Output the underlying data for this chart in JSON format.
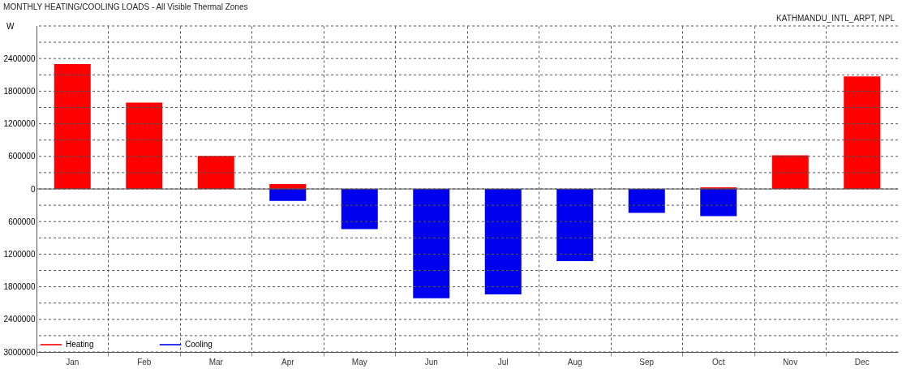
{
  "chart_data": {
    "type": "bar",
    "title": "MONTHLY HEATING/COOLING LOADS - All Visible Thermal Zones",
    "subtitle": "KATHMANDU_INTL_ARPT, NPL",
    "ylabel": "W",
    "categories": [
      "Jan",
      "Feb",
      "Mar",
      "Apr",
      "May",
      "Jun",
      "Jul",
      "Aug",
      "Sep",
      "Oct",
      "Nov",
      "Dec"
    ],
    "series": [
      {
        "name": "Heating",
        "color": "#ff0000",
        "values": [
          2300000,
          1590000,
          610000,
          90000,
          0,
          0,
          0,
          0,
          0,
          30000,
          620000,
          2070000
        ]
      },
      {
        "name": "Cooling",
        "color": "#0000ee",
        "values": [
          0,
          0,
          0,
          -220000,
          -740000,
          -2010000,
          -1940000,
          -1330000,
          -440000,
          -500000,
          0,
          0
        ]
      }
    ],
    "ylim": [
      -3000000,
      3000000
    ],
    "yticks": [
      {
        "value": -3000000,
        "label": "3000000"
      },
      {
        "value": -2700000,
        "label": null
      },
      {
        "value": -2400000,
        "label": "2400000"
      },
      {
        "value": -2100000,
        "label": null
      },
      {
        "value": -1800000,
        "label": "1800000"
      },
      {
        "value": -1500000,
        "label": null
      },
      {
        "value": -1200000,
        "label": "1200000"
      },
      {
        "value": -900000,
        "label": null
      },
      {
        "value": -600000,
        "label": "600000"
      },
      {
        "value": -300000,
        "label": null
      },
      0,
      {
        "value": 300000,
        "label": null
      },
      600000,
      {
        "value": 900000,
        "label": null
      },
      1200000,
      {
        "value": 1500000,
        "label": null
      },
      1800000,
      {
        "value": 2100000,
        "label": null
      },
      2400000,
      {
        "value": 2700000,
        "label": null
      },
      {
        "value": 3000000,
        "label": null
      }
    ],
    "grid": true,
    "legend": "bottom left"
  }
}
